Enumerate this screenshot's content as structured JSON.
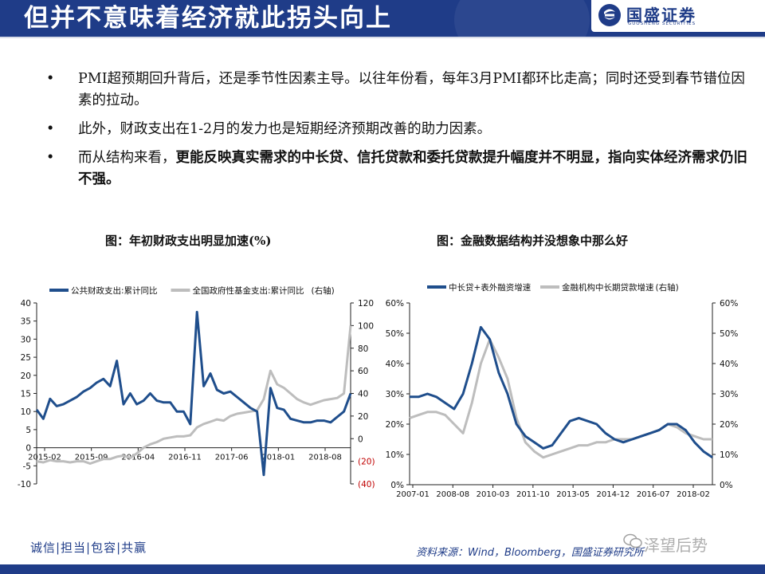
{
  "header": {
    "title": "但并不意味着经济就此拐头向上",
    "logo_name": "国盛证券",
    "logo_sub": "GUOSHENG SECURITIES"
  },
  "bullets": [
    {
      "text": "PMI超预期回升背后，还是季节性因素主导。以往年份看，每年3月PMI都环比走高；同时还受到春节错位因素的拉动。",
      "bold_text": ""
    },
    {
      "text": "此外，财政支出在1-2月的发力也是短期经济预期改善的助力因素。",
      "bold_text": ""
    },
    {
      "text": "而从结构来看，",
      "bold_text": "更能反映真实需求的中长贷、信托贷款和委托贷款提升幅度并不明显，指向实体经济需求仍旧不强。"
    }
  ],
  "bullet_mark": "•",
  "footer": {
    "motto": "诚信|担当|包容|共赢",
    "source": "资料来源：Wind，Bloomberg，国盛证券研究所",
    "watermark": "泽望后势"
  },
  "chart_data": [
    {
      "type": "line",
      "title": "图：年初财政支出明显加速(%)",
      "x_ticks": [
        "2015-02",
        "2015-09",
        "2016-04",
        "2016-11",
        "2017-06",
        "2018-01",
        "2018-08"
      ],
      "ylim": [
        -10,
        40
      ],
      "y_ticks": [
        "40",
        "35",
        "30",
        "25",
        "20",
        "15",
        "10",
        "5",
        "0",
        "-5",
        "-10"
      ],
      "y2lim": [
        -40,
        120
      ],
      "y2_ticks": [
        "120",
        "100",
        "80",
        "60",
        "40",
        "20",
        "0",
        "(20)",
        "(40)"
      ],
      "y2_negative_color": "#c00000",
      "series": [
        {
          "name": "公共财政支出:累计同比",
          "axis": "left",
          "color": "#1f4e8c",
          "values": [
            10.5,
            8,
            13.5,
            11.5,
            12,
            13,
            14,
            15.5,
            16.5,
            18,
            19,
            17,
            24,
            12,
            15,
            12,
            13,
            15,
            13,
            12.5,
            12.5,
            10,
            10,
            6.5,
            37.5,
            17,
            20.5,
            16,
            15,
            15.5,
            14,
            12.5,
            11,
            10,
            -7.5,
            16.5,
            11,
            10.5,
            8,
            7.5,
            7,
            7,
            7.5,
            7.5,
            7,
            8.5,
            10,
            15
          ]
        },
        {
          "name": "全国政府性基金支出:累计同比",
          "axis": "right",
          "color": "#bdbdbd",
          "axis_label": "(右轴)",
          "values": [
            -20,
            -21,
            -19,
            -20,
            -20,
            -21,
            -20,
            -20,
            -22,
            -20,
            -18,
            -18,
            -16,
            -15,
            -17,
            -13,
            -8,
            -5,
            -3,
            0,
            1,
            2,
            2,
            3,
            10,
            13,
            15,
            17,
            16,
            20,
            22,
            23,
            24,
            25,
            35,
            60,
            48,
            45,
            40,
            35,
            32,
            30,
            32,
            34,
            35,
            36,
            40,
            100
          ]
        }
      ]
    },
    {
      "type": "line",
      "title": "图：金融数据结构并没想象中那么好",
      "x_ticks": [
        "2007-01",
        "2008-08",
        "2010-03",
        "2011-10",
        "2013-05",
        "2014-12",
        "2016-07",
        "2018-02"
      ],
      "ylim": [
        0,
        60
      ],
      "y_ticks": [
        "60%",
        "50%",
        "40%",
        "30%",
        "20%",
        "10%",
        "0%"
      ],
      "y2lim": [
        0,
        60
      ],
      "y2_ticks": [
        "60%",
        "50%",
        "40%",
        "30%",
        "20%",
        "10%",
        "0%"
      ],
      "series": [
        {
          "name": "中长贷+表外融资增速",
          "axis": "left",
          "color": "#1f4e8c",
          "values": [
            29,
            29,
            30,
            29,
            27,
            25,
            30,
            40,
            52,
            48,
            37,
            30,
            20,
            16,
            14,
            12,
            13,
            17,
            21,
            22,
            21,
            20,
            17,
            15,
            14,
            15,
            16,
            17,
            18,
            20,
            20,
            18,
            14,
            11,
            9
          ]
        },
        {
          "name": "金融机构中长期贷款增速",
          "axis": "right",
          "color": "#bdbdbd",
          "axis_label": "(右轴)",
          "values": [
            22,
            23,
            24,
            24,
            23,
            20,
            17,
            27,
            40,
            48,
            42,
            35,
            22,
            14,
            11,
            9,
            10,
            11,
            12,
            13,
            13,
            14,
            14,
            15,
            15,
            15,
            16,
            17,
            18,
            20,
            19,
            17,
            16,
            15,
            15
          ]
        }
      ]
    }
  ]
}
